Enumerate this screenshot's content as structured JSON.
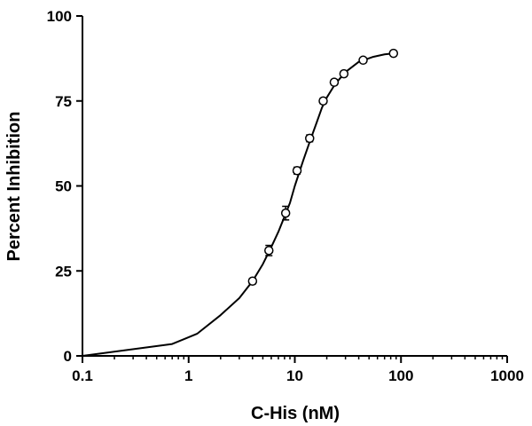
{
  "chart_data": {
    "type": "scatter",
    "xlabel": "C-His (nM)",
    "ylabel": "Percent Inhibition",
    "x_scale": "log",
    "xlim": [
      0.1,
      1000
    ],
    "ylim": [
      0,
      100
    ],
    "x_ticks": [
      "0.1",
      "1",
      "10",
      "100",
      "1000"
    ],
    "y_ticks": [
      "0",
      "25",
      "50",
      "75",
      "100"
    ],
    "grid": false,
    "legend": "none",
    "series": [
      {
        "marker": "open-circle",
        "x": [
          4,
          5.7,
          8.2,
          10.5,
          13.8,
          18.5,
          23.5,
          29,
          44,
          85
        ],
        "y": [
          22,
          31,
          42,
          54.5,
          64,
          75,
          80.5,
          83,
          87,
          89
        ],
        "y_err": [
          0.8,
          1.5,
          2,
          1,
          1,
          0.8,
          0.8,
          0.7,
          0.7,
          0.6
        ]
      }
    ],
    "fit_curve": {
      "x": [
        0.1,
        0.7,
        1.2,
        2,
        3,
        4,
        5,
        6,
        7,
        8,
        9,
        10,
        12,
        14,
        16,
        18,
        20,
        24,
        30,
        40,
        55,
        70,
        85
      ],
      "y": [
        0,
        3.5,
        6.5,
        12,
        17,
        22,
        27,
        32,
        36.5,
        41,
        45,
        50,
        57.5,
        63.5,
        68.5,
        73,
        76,
        80,
        83.5,
        86.5,
        88,
        88.7,
        89
      ]
    }
  }
}
